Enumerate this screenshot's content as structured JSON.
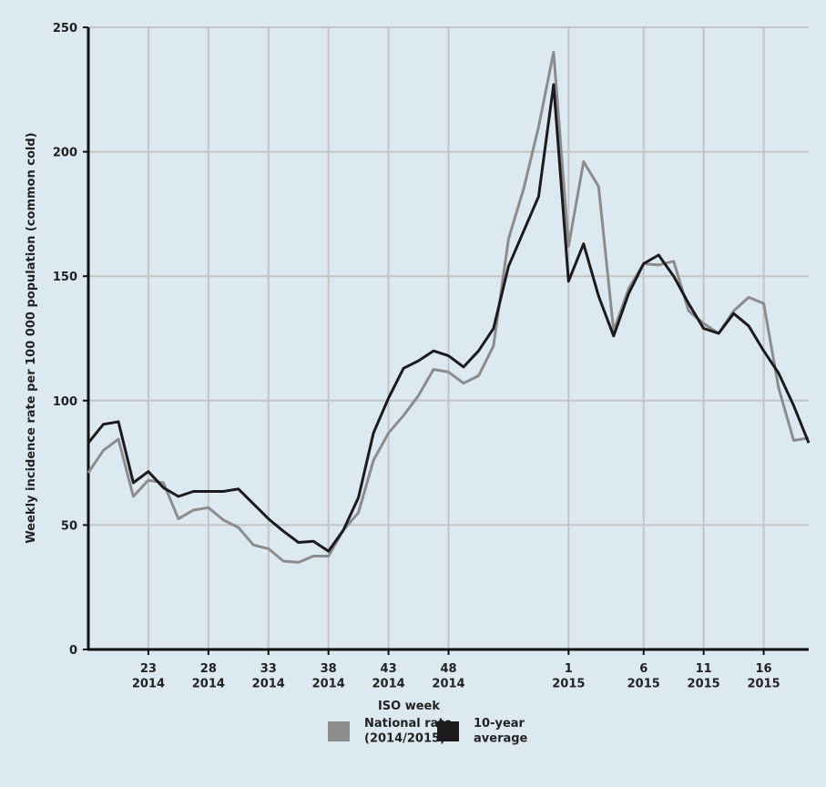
{
  "chart_data": {
    "type": "line",
    "y_label": "Weekly incidence rate per 100 000 population (common cold)",
    "x_label": "ISO week",
    "x": [
      0,
      1,
      2,
      3,
      4,
      5,
      6,
      7,
      8,
      9,
      10,
      11,
      12,
      13,
      14,
      15,
      16,
      17,
      18,
      19,
      20,
      21,
      22,
      23,
      24,
      25,
      26,
      27,
      28,
      29,
      30,
      31,
      32,
      33,
      34,
      35,
      36,
      37,
      38,
      39,
      40,
      41,
      42,
      43,
      44,
      45,
      46,
      47,
      48
    ],
    "xlim": [
      0,
      48
    ],
    "xticks": [
      {
        "value": 4,
        "label": "23\n2014"
      },
      {
        "value": 8,
        "label": "28\n2014"
      },
      {
        "value": 12,
        "label": "33\n2014"
      },
      {
        "value": 16,
        "label": "38\n2014"
      },
      {
        "value": 20,
        "label": "43\n2014"
      },
      {
        "value": 24,
        "label": "48\n2014"
      },
      {
        "value": 32,
        "label": "1\n2015"
      },
      {
        "value": 37,
        "label": "6\n2015"
      },
      {
        "value": 41,
        "label": "11\n2015"
      },
      {
        "value": 45,
        "label": "16\n2015"
      }
    ],
    "ylim": [
      0,
      250
    ],
    "yticks": [
      0,
      50,
      100,
      150,
      200,
      250
    ],
    "grid": true,
    "series": [
      {
        "name": "National rate\n(2014/2015)",
        "color": "#8c8c8c",
        "values": [
          71,
          80,
          84.5,
          61.5,
          68,
          67,
          52.5,
          56,
          57,
          52,
          49,
          42,
          40.5,
          35.5,
          35,
          37.5,
          37.5,
          48,
          55,
          76,
          87,
          94,
          102,
          112.5,
          111.5,
          107,
          110,
          122,
          165,
          185,
          210,
          240,
          162,
          196,
          186,
          128,
          145,
          155,
          154.5,
          156,
          136,
          131,
          127,
          136,
          141.5,
          139,
          105,
          84,
          85
        ]
      },
      {
        "name": "10-year\naverage",
        "color": "#1c1a1c",
        "values": [
          83,
          90.5,
          91.5,
          67,
          71.5,
          65,
          61.5,
          63.5,
          63.5,
          63.5,
          64.5,
          58.5,
          52.5,
          47.5,
          43,
          43.5,
          39.5,
          48,
          61,
          87,
          101,
          113,
          116,
          120,
          118,
          113.5,
          120,
          129,
          154,
          168,
          182,
          227,
          148,
          163,
          142,
          126,
          143,
          155,
          158.5,
          150,
          139,
          129,
          127,
          135,
          130,
          120,
          111,
          98,
          83
        ]
      }
    ]
  }
}
